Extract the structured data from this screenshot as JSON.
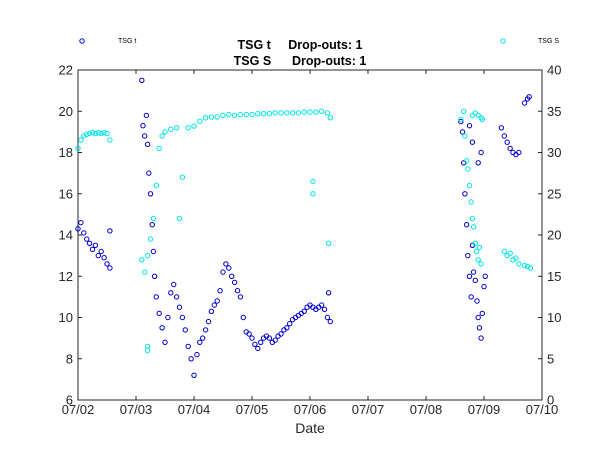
{
  "chart_data": {
    "type": "scatter",
    "title_lines": [
      "TSG t     Drop-outs: 1",
      "TSG S      Drop-outs: 1"
    ],
    "xlabel": "Date",
    "x_ticks": [
      "07/02",
      "07/03",
      "07/04",
      "07/05",
      "07/06",
      "07/07",
      "07/08",
      "07/09",
      "07/10"
    ],
    "x_range_days": [
      0,
      8
    ],
    "left_axis": {
      "series": "TSG t",
      "ylim": [
        6,
        22
      ],
      "ticks": [
        "6",
        "8",
        "10",
        "12",
        "14",
        "16",
        "18",
        "20",
        "22"
      ]
    },
    "right_axis": {
      "series": "TSG S",
      "ylim": [
        0,
        40
      ],
      "ticks": [
        "0",
        "5",
        "10",
        "15",
        "20",
        "25",
        "30",
        "35",
        "40"
      ]
    },
    "grid": false,
    "legend": "top, outside axes (left and right)",
    "series": [
      {
        "name": "TSG t",
        "color": "#0000cc",
        "marker": "open-circle",
        "axis": "left",
        "points": [
          [
            0.0,
            14.3
          ],
          [
            0.05,
            14.6
          ],
          [
            0.1,
            14.1
          ],
          [
            0.15,
            13.8
          ],
          [
            0.2,
            13.6
          ],
          [
            0.25,
            13.3
          ],
          [
            0.3,
            13.5
          ],
          [
            0.35,
            13.0
          ],
          [
            0.4,
            13.2
          ],
          [
            0.45,
            12.9
          ],
          [
            0.5,
            12.6
          ],
          [
            0.55,
            14.2
          ],
          [
            0.55,
            12.4
          ],
          [
            1.1,
            21.5
          ],
          [
            1.12,
            19.3
          ],
          [
            1.15,
            18.8
          ],
          [
            1.18,
            19.8
          ],
          [
            1.2,
            18.4
          ],
          [
            1.22,
            17.0
          ],
          [
            1.25,
            16.0
          ],
          [
            1.28,
            14.5
          ],
          [
            1.3,
            13.2
          ],
          [
            1.32,
            12.0
          ],
          [
            1.35,
            11.0
          ],
          [
            1.4,
            10.2
          ],
          [
            1.45,
            9.5
          ],
          [
            1.5,
            8.8
          ],
          [
            1.55,
            10.0
          ],
          [
            1.6,
            11.2
          ],
          [
            1.65,
            11.6
          ],
          [
            1.7,
            11.0
          ],
          [
            1.75,
            10.5
          ],
          [
            1.8,
            10.0
          ],
          [
            1.85,
            9.4
          ],
          [
            1.9,
            8.6
          ],
          [
            1.95,
            8.0
          ],
          [
            2.0,
            7.2
          ],
          [
            2.05,
            8.2
          ],
          [
            2.1,
            8.8
          ],
          [
            2.15,
            9.0
          ],
          [
            2.2,
            9.4
          ],
          [
            2.25,
            9.8
          ],
          [
            2.3,
            10.3
          ],
          [
            2.35,
            10.6
          ],
          [
            2.4,
            10.8
          ],
          [
            2.45,
            11.3
          ],
          [
            2.5,
            12.2
          ],
          [
            2.55,
            12.6
          ],
          [
            2.6,
            12.4
          ],
          [
            2.65,
            12.0
          ],
          [
            2.7,
            11.7
          ],
          [
            2.75,
            11.3
          ],
          [
            2.8,
            11.0
          ],
          [
            2.85,
            10.0
          ],
          [
            2.9,
            9.3
          ],
          [
            2.95,
            9.2
          ],
          [
            3.0,
            9.0
          ],
          [
            3.05,
            8.7
          ],
          [
            3.1,
            8.5
          ],
          [
            3.15,
            8.8
          ],
          [
            3.2,
            9.0
          ],
          [
            3.25,
            9.1
          ],
          [
            3.3,
            9.0
          ],
          [
            3.35,
            8.8
          ],
          [
            3.4,
            8.9
          ],
          [
            3.45,
            9.1
          ],
          [
            3.5,
            9.2
          ],
          [
            3.55,
            9.4
          ],
          [
            3.6,
            9.5
          ],
          [
            3.65,
            9.7
          ],
          [
            3.7,
            9.9
          ],
          [
            3.75,
            10.0
          ],
          [
            3.8,
            10.1
          ],
          [
            3.85,
            10.2
          ],
          [
            3.9,
            10.3
          ],
          [
            3.95,
            10.5
          ],
          [
            4.0,
            10.6
          ],
          [
            4.05,
            10.5
          ],
          [
            4.1,
            10.4
          ],
          [
            4.15,
            10.5
          ],
          [
            4.2,
            10.6
          ],
          [
            4.25,
            10.4
          ],
          [
            4.3,
            10.0
          ],
          [
            4.32,
            11.2
          ],
          [
            4.35,
            9.8
          ],
          [
            6.6,
            19.5
          ],
          [
            6.63,
            19.0
          ],
          [
            6.65,
            17.5
          ],
          [
            6.67,
            16.0
          ],
          [
            6.7,
            14.5
          ],
          [
            6.72,
            13.0
          ],
          [
            6.75,
            12.0
          ],
          [
            6.78,
            11.0
          ],
          [
            6.8,
            13.5
          ],
          [
            6.82,
            12.2
          ],
          [
            6.85,
            11.8
          ],
          [
            6.88,
            10.8
          ],
          [
            6.9,
            10.0
          ],
          [
            6.92,
            9.5
          ],
          [
            6.95,
            9.0
          ],
          [
            6.97,
            10.2
          ],
          [
            7.0,
            11.5
          ],
          [
            7.02,
            12.0
          ],
          [
            6.75,
            19.3
          ],
          [
            6.8,
            18.5
          ],
          [
            6.9,
            17.5
          ],
          [
            6.95,
            18.0
          ],
          [
            7.3,
            19.2
          ],
          [
            7.35,
            18.8
          ],
          [
            7.4,
            18.5
          ],
          [
            7.45,
            18.2
          ],
          [
            7.5,
            18.0
          ],
          [
            7.55,
            17.9
          ],
          [
            7.6,
            18.0
          ],
          [
            7.7,
            20.4
          ],
          [
            7.75,
            20.6
          ],
          [
            7.78,
            20.7
          ]
        ]
      },
      {
        "name": "TSG S",
        "color": "#00e5e5",
        "marker": "open-circle",
        "axis": "right",
        "points": [
          [
            0.0,
            30.5
          ],
          [
            0.05,
            31.5
          ],
          [
            0.1,
            32.0
          ],
          [
            0.15,
            32.2
          ],
          [
            0.2,
            32.3
          ],
          [
            0.25,
            32.4
          ],
          [
            0.3,
            32.3
          ],
          [
            0.35,
            32.4
          ],
          [
            0.4,
            32.3
          ],
          [
            0.45,
            32.4
          ],
          [
            0.5,
            32.3
          ],
          [
            0.55,
            31.5
          ],
          [
            1.1,
            17.0
          ],
          [
            1.15,
            15.5
          ],
          [
            1.2,
            17.5
          ],
          [
            1.25,
            19.5
          ],
          [
            1.3,
            22.0
          ],
          [
            1.35,
            26.0
          ],
          [
            1.4,
            30.5
          ],
          [
            1.45,
            32.0
          ],
          [
            1.5,
            32.5
          ],
          [
            1.6,
            32.8
          ],
          [
            1.7,
            33.0
          ],
          [
            1.75,
            22.0
          ],
          [
            1.8,
            27.0
          ],
          [
            1.9,
            33.0
          ],
          [
            2.0,
            33.2
          ],
          [
            2.1,
            33.8
          ],
          [
            2.2,
            34.2
          ],
          [
            2.3,
            34.3
          ],
          [
            2.4,
            34.3
          ],
          [
            2.5,
            34.5
          ],
          [
            2.6,
            34.6
          ],
          [
            2.7,
            34.5
          ],
          [
            2.8,
            34.6
          ],
          [
            2.9,
            34.6
          ],
          [
            3.0,
            34.6
          ],
          [
            3.1,
            34.7
          ],
          [
            3.2,
            34.7
          ],
          [
            3.3,
            34.7
          ],
          [
            3.4,
            34.8
          ],
          [
            3.5,
            34.8
          ],
          [
            3.6,
            34.8
          ],
          [
            3.7,
            34.8
          ],
          [
            3.8,
            34.8
          ],
          [
            3.9,
            34.9
          ],
          [
            4.0,
            34.9
          ],
          [
            4.05,
            25.0
          ],
          [
            4.05,
            26.5
          ],
          [
            4.1,
            34.9
          ],
          [
            4.2,
            35.0
          ],
          [
            4.3,
            34.8
          ],
          [
            4.35,
            34.2
          ],
          [
            4.32,
            19.0
          ],
          [
            1.2,
            6.0
          ],
          [
            1.2,
            6.5
          ],
          [
            6.6,
            34.0
          ],
          [
            6.65,
            35.0
          ],
          [
            6.67,
            32.0
          ],
          [
            6.7,
            29.0
          ],
          [
            6.72,
            28.0
          ],
          [
            6.75,
            26.0
          ],
          [
            6.78,
            24.0
          ],
          [
            6.8,
            22.0
          ],
          [
            6.82,
            21.0
          ],
          [
            6.85,
            19.0
          ],
          [
            6.87,
            18.0
          ],
          [
            6.9,
            17.0
          ],
          [
            6.92,
            18.5
          ],
          [
            6.95,
            16.5
          ],
          [
            6.8,
            34.5
          ],
          [
            6.85,
            34.8
          ],
          [
            6.9,
            34.5
          ],
          [
            6.95,
            34.2
          ],
          [
            6.97,
            34.0
          ],
          [
            7.35,
            18.0
          ],
          [
            7.4,
            17.5
          ],
          [
            7.45,
            17.8
          ],
          [
            7.5,
            17.0
          ],
          [
            7.55,
            17.2
          ],
          [
            7.6,
            16.5
          ],
          [
            7.7,
            16.3
          ],
          [
            7.75,
            16.2
          ],
          [
            7.8,
            16.0
          ]
        ]
      }
    ]
  }
}
